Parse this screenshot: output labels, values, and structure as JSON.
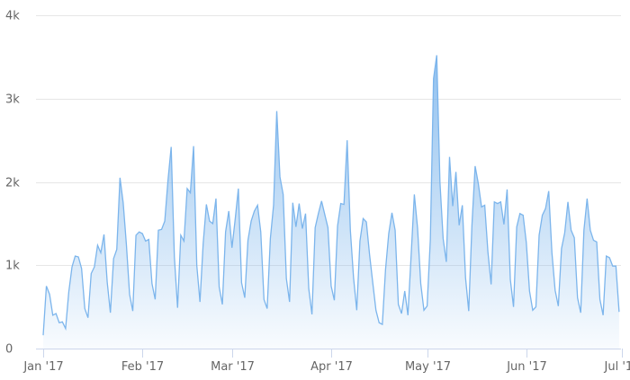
{
  "chart_data": {
    "type": "area",
    "title": "",
    "xlabel": "",
    "ylabel": "",
    "ylim": [
      0,
      4000
    ],
    "yticks": [
      0,
      1000,
      2000,
      3000,
      4000
    ],
    "ytick_labels": [
      "0",
      "1k",
      "2k",
      "3k",
      "4k"
    ],
    "xticks": [
      "Jan '17",
      "Feb '17",
      "Mar '17",
      "Apr '17",
      "May '17",
      "Jun '17",
      "Jul '17"
    ],
    "xtick_days": [
      0,
      31,
      59,
      90,
      120,
      151,
      181
    ],
    "grid": "horizontal",
    "legend": "none",
    "color": "#7cb5ec",
    "x_start": "2017-01-01",
    "x_step": "1 day",
    "values": [
      160,
      750,
      650,
      400,
      420,
      310,
      320,
      240,
      680,
      980,
      1110,
      1100,
      960,
      480,
      370,
      900,
      980,
      1240,
      1150,
      1370,
      800,
      430,
      1080,
      1190,
      2050,
      1750,
      1250,
      650,
      450,
      1360,
      1400,
      1380,
      1290,
      1310,
      780,
      590,
      1420,
      1430,
      1530,
      2020,
      2420,
      1100,
      490,
      1360,
      1290,
      1920,
      1870,
      2430,
      1000,
      560,
      1260,
      1730,
      1530,
      1500,
      1800,
      740,
      530,
      1400,
      1650,
      1210,
      1550,
      1920,
      790,
      610,
      1300,
      1530,
      1650,
      1720,
      1400,
      590,
      480,
      1320,
      1720,
      2850,
      2060,
      1850,
      840,
      560,
      1750,
      1460,
      1740,
      1440,
      1620,
      720,
      410,
      1450,
      1620,
      1770,
      1610,
      1450,
      750,
      580,
      1470,
      1740,
      1730,
      2500,
      1420,
      850,
      460,
      1290,
      1560,
      1520,
      1130,
      790,
      460,
      310,
      290,
      950,
      1380,
      1630,
      1420,
      530,
      420,
      690,
      400,
      1120,
      1850,
      1450,
      780,
      460,
      510,
      1310,
      3240,
      3520,
      2000,
      1320,
      1040,
      2300,
      1710,
      2120,
      1480,
      1720,
      850,
      450,
      1480,
      2190,
      1980,
      1700,
      1720,
      1160,
      770,
      1760,
      1740,
      1760,
      1490,
      1910,
      830,
      500,
      1460,
      1620,
      1600,
      1270,
      690,
      460,
      500,
      1360,
      1600,
      1680,
      1890,
      1150,
      700,
      510,
      1200,
      1390,
      1760,
      1420,
      1330,
      610,
      430,
      1420,
      1800,
      1420,
      1300,
      1280,
      590,
      400,
      1110,
      1090,
      990,
      990,
      440
    ]
  }
}
